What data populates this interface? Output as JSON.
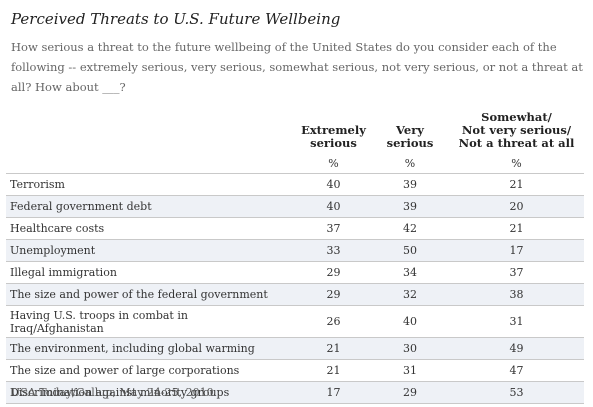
{
  "title": "Perceived Threats to U.S. Future Wellbeing",
  "subtitle": "How serious a threat to the future wellbeing of the United States do you consider each of the following -- extremely serious, very serious, somewhat serious, not very serious, or not a threat at all? How about ___?",
  "source": "USA Today/Gallup, May 24-25, 2010",
  "chart_data": {
    "type": "table",
    "columns": [
      {
        "label": "Extremely\nserious"
      },
      {
        "label": "Very\nserious"
      },
      {
        "label": "Somewhat/\nNot very serious/\nNot a threat at all"
      }
    ],
    "unit": "%",
    "rows": [
      {
        "label": "Terrorism",
        "values": [
          40,
          39,
          21
        ]
      },
      {
        "label": "Federal government debt",
        "values": [
          40,
          39,
          20
        ]
      },
      {
        "label": "Healthcare costs",
        "values": [
          37,
          42,
          21
        ]
      },
      {
        "label": "Unemployment",
        "values": [
          33,
          50,
          17
        ]
      },
      {
        "label": "Illegal immigration",
        "values": [
          29,
          34,
          37
        ]
      },
      {
        "label": "The size and power of the federal government",
        "values": [
          29,
          32,
          38
        ]
      },
      {
        "label": "Having U.S. troops in combat in\nIraq/Afghanistan",
        "values": [
          26,
          40,
          31
        ]
      },
      {
        "label": "The environment, including global warming",
        "values": [
          21,
          30,
          49
        ]
      },
      {
        "label": "The size and power of large corporations",
        "values": [
          21,
          31,
          47
        ]
      },
      {
        "label": "Discrimination against minority groups",
        "values": [
          17,
          29,
          53
        ]
      }
    ]
  }
}
